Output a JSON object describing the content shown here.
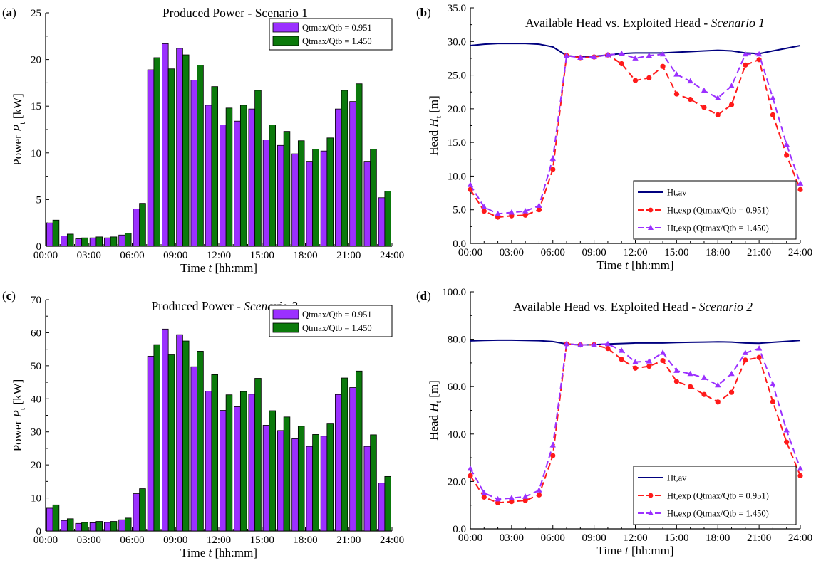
{
  "colors": {
    "purple": "#9b30ff",
    "green": "#0b7a0b",
    "navy": "#00007f",
    "red": "#ff1a1a",
    "violet": "#9b30ff"
  },
  "chart_data": [
    {
      "panel_label": "a",
      "type": "bar",
      "title": "Produced Power - Scenario 1",
      "title_italic": "",
      "xlabel": "Time t [hh:mm]",
      "ylabel": "Power P_t [kW]",
      "ylim": [
        0,
        25
      ],
      "yticks": [
        "0",
        "5",
        "10",
        "15",
        "20",
        "25"
      ],
      "xticks": [
        "00:00",
        "03:00",
        "06:00",
        "09:00",
        "12:00",
        "15:00",
        "18:00",
        "21:00",
        "24:00"
      ],
      "legend_position": "top-right",
      "series": [
        {
          "name": "Qtmax/Qtb = 0.951",
          "color": "purple",
          "values": [
            2.5,
            1.1,
            0.8,
            0.9,
            0.9,
            1.2,
            4.0,
            18.9,
            21.7,
            21.2,
            17.8,
            15.1,
            13.0,
            13.4,
            14.7,
            11.4,
            10.8,
            9.9,
            9.1,
            10.2,
            14.7,
            15.5,
            9.1,
            5.2
          ]
        },
        {
          "name": "Qtmax/Qtb = 1.450",
          "color": "green",
          "values": [
            2.8,
            1.3,
            0.9,
            1.0,
            1.0,
            1.4,
            4.6,
            20.2,
            19.0,
            20.5,
            19.4,
            17.1,
            14.8,
            15.1,
            16.7,
            13.0,
            12.3,
            11.3,
            10.4,
            11.6,
            16.7,
            17.4,
            10.4,
            5.9
          ]
        }
      ]
    },
    {
      "panel_label": "b",
      "type": "line",
      "title": "Available Head vs. Exploited Head - ",
      "title_italic": "Scenario 1",
      "xlabel": "Time t [hh:mm]",
      "ylabel": "Head H_t [m]",
      "ylim": [
        0,
        35
      ],
      "yticks": [
        "0.0",
        "5.0",
        "10.0",
        "15.0",
        "20.0",
        "25.0",
        "30.0",
        "35.0"
      ],
      "xticks": [
        "00:00",
        "03:00",
        "06:00",
        "09:00",
        "12:00",
        "15:00",
        "18:00",
        "21:00",
        "24:00"
      ],
      "legend_position": "bottom-right",
      "series": [
        {
          "name": "Ht,av",
          "color": "navy",
          "style": "solid",
          "marker": "none",
          "values": [
            29.4,
            29.6,
            29.7,
            29.7,
            29.7,
            29.6,
            29.2,
            27.9,
            27.7,
            27.8,
            28.0,
            28.2,
            28.3,
            28.3,
            28.3,
            28.4,
            28.5,
            28.6,
            28.7,
            28.6,
            28.3,
            28.2,
            28.6,
            29.0,
            29.4
          ]
        },
        {
          "name": "Ht,exp (Qtmax/Qtb = 0.951)",
          "color": "red",
          "style": "dashed",
          "marker": "circle",
          "values": [
            8.0,
            4.8,
            3.9,
            4.1,
            4.2,
            5.0,
            11.0,
            27.9,
            27.6,
            27.7,
            28.0,
            26.7,
            24.2,
            24.6,
            26.3,
            22.2,
            21.4,
            20.2,
            19.1,
            20.6,
            26.5,
            27.3,
            19.1,
            13.1,
            8.0
          ]
        },
        {
          "name": "Ht,exp (Qtmax/Qtb = 1.450)",
          "color": "violet",
          "style": "dashed",
          "marker": "triangle",
          "values": [
            8.7,
            5.4,
            4.4,
            4.6,
            4.8,
            5.6,
            12.6,
            27.9,
            27.6,
            27.7,
            28.0,
            28.2,
            27.5,
            27.9,
            28.1,
            25.1,
            24.1,
            22.7,
            21.6,
            23.4,
            28.1,
            28.1,
            21.6,
            14.7,
            8.9
          ]
        }
      ]
    },
    {
      "panel_label": "c",
      "type": "bar",
      "title": "Produced Power - ",
      "title_italic": "Scenario 2",
      "xlabel": "Time t [hh:mm]",
      "ylabel": "Power P_t [kW]",
      "ylim": [
        0,
        70
      ],
      "yticks": [
        "0",
        "10",
        "20",
        "30",
        "40",
        "50",
        "60",
        "70"
      ],
      "xticks": [
        "00:00",
        "03:00",
        "06:00",
        "09:00",
        "12:00",
        "15:00",
        "18:00",
        "21:00",
        "24:00"
      ],
      "legend_position": "top-right",
      "series": [
        {
          "name": "Qtmax/Qtb = 0.951",
          "color": "purple",
          "values": [
            6.9,
            3.2,
            2.3,
            2.5,
            2.6,
            3.4,
            11.3,
            52.9,
            61.1,
            59.4,
            49.7,
            42.3,
            36.5,
            37.6,
            41.4,
            32.0,
            30.4,
            27.9,
            25.6,
            28.7,
            41.3,
            43.4,
            25.6,
            14.5
          ]
        },
        {
          "name": "Qtmax/Qtb = 1.450",
          "color": "green",
          "values": [
            7.9,
            3.7,
            2.6,
            2.9,
            2.9,
            3.9,
            12.8,
            56.4,
            53.3,
            57.5,
            54.4,
            47.3,
            41.2,
            42.2,
            46.2,
            36.4,
            34.5,
            31.7,
            29.2,
            32.6,
            46.3,
            48.4,
            29.1,
            16.5
          ]
        }
      ]
    },
    {
      "panel_label": "d",
      "type": "line",
      "title": "Available Head vs. Exploited Head - ",
      "title_italic": "Scenario 2",
      "xlabel": "Time t [hh:mm]",
      "ylabel": "Head H_t [m]",
      "ylim": [
        0,
        100
      ],
      "yticks": [
        "0.0",
        "20.0",
        "40.0",
        "60.0",
        "80.0",
        "100.0"
      ],
      "xticks": [
        "00:00",
        "03:00",
        "06:00",
        "09:00",
        "12:00",
        "15:00",
        "18:00",
        "21:00",
        "24:00"
      ],
      "legend_position": "bottom-right",
      "series": [
        {
          "name": "Ht,av",
          "color": "navy",
          "style": "solid",
          "marker": "none",
          "values": [
            79.3,
            79.5,
            79.6,
            79.6,
            79.5,
            79.4,
            79.0,
            78.0,
            77.6,
            77.7,
            78.0,
            78.2,
            78.4,
            78.4,
            78.4,
            78.6,
            78.7,
            78.8,
            78.9,
            78.8,
            78.4,
            78.3,
            78.7,
            79.1,
            79.5
          ]
        },
        {
          "name": "Ht,exp (Qtmax/Qtb = 0.951)",
          "color": "red",
          "style": "dashed",
          "marker": "circle",
          "values": [
            22.4,
            13.4,
            11.0,
            11.5,
            12.0,
            14.3,
            30.9,
            78.0,
            77.6,
            77.7,
            76.1,
            71.5,
            67.8,
            68.6,
            71.0,
            62.2,
            60.0,
            56.7,
            53.5,
            57.6,
            71.2,
            72.3,
            53.6,
            36.6,
            22.4
          ]
        },
        {
          "name": "Ht,exp (Qtmax/Qtb = 1.450)",
          "color": "violet",
          "style": "dashed",
          "marker": "triangle",
          "values": [
            25.4,
            15.2,
            12.5,
            13.0,
            13.6,
            16.3,
            35.3,
            78.0,
            77.6,
            77.7,
            78.0,
            75.2,
            70.4,
            70.7,
            74.3,
            66.7,
            65.4,
            63.7,
            60.6,
            65.4,
            74.2,
            76.1,
            61.0,
            41.6,
            25.4
          ]
        }
      ]
    }
  ]
}
